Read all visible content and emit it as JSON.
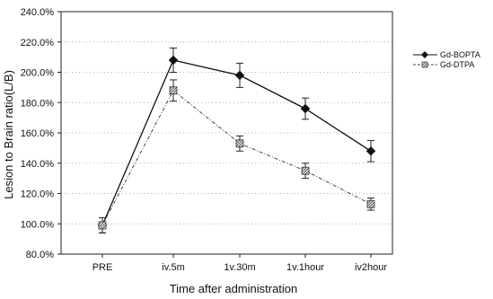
{
  "chart_data": {
    "type": "line",
    "categories": [
      "PRE",
      "iv.5m",
      "1v.30m",
      "1v.1hour",
      "iv2hour"
    ],
    "series": [
      {
        "name": "Gd-BOPTA",
        "values": [
          99.0,
          208.0,
          198.0,
          176.0,
          148.0
        ],
        "errors": [
          5.0,
          8.0,
          8.0,
          7.0,
          7.0
        ],
        "style": "solid",
        "marker": "diamond",
        "color": "#111111"
      },
      {
        "name": "Gd-DTPA",
        "values": [
          99.0,
          188.0,
          153.0,
          135.0,
          113.0
        ],
        "errors": [
          5.0,
          7.0,
          5.0,
          5.0,
          4.0
        ],
        "style": "dashed",
        "marker": "square-hatched",
        "color": "#555555"
      }
    ],
    "yticks": [
      "80.0%",
      "100.0%",
      "120.0%",
      "140.0%",
      "160.0%",
      "180.0%",
      "200.0%",
      "220.0%",
      "240.0%"
    ],
    "ylim": [
      80,
      240
    ],
    "xlabel": "Time after administration",
    "ylabel": "Lesion to Brain ratio(L/B)",
    "grid": "dotted horizontal",
    "legend_position": "right"
  }
}
